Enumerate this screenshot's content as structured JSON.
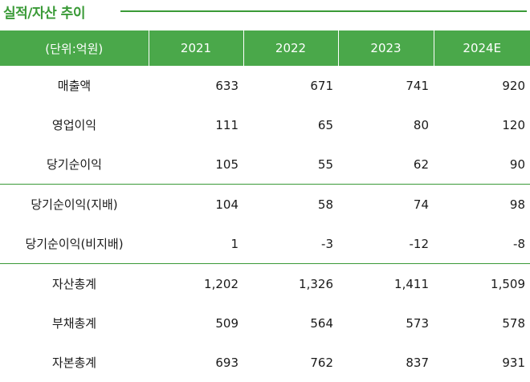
{
  "title": "실적/자산 추이",
  "header": [
    "(단위:억원)",
    "2021",
    "2022",
    "2023",
    "2024E"
  ],
  "rows": [
    {
      "label": "매출액",
      "values": [
        "633",
        "671",
        "741",
        "920"
      ]
    },
    {
      "label": "영업이익",
      "values": [
        "111",
        "65",
        "80",
        "120"
      ]
    },
    {
      "label": "당기순이익",
      "values": [
        "105",
        "55",
        "62",
        "90"
      ]
    },
    {
      "label": "당기순이익(지배)",
      "values": [
        "104",
        "58",
        "74",
        "98"
      ]
    },
    {
      "label": "당기순이익(비지배)",
      "values": [
        "1",
        "-3",
        "-12",
        "-8"
      ]
    },
    {
      "label": "자산총계",
      "values": [
        "1,202",
        "1,326",
        "1,411",
        "1,509"
      ]
    },
    {
      "label": "부채총계",
      "values": [
        "509",
        "564",
        "573",
        "578"
      ]
    },
    {
      "label": "자본총계",
      "values": [
        "693",
        "762",
        "837",
        "931"
      ]
    }
  ],
  "colors": {
    "accent": "#4aa84a",
    "title": "#3a9a37"
  }
}
